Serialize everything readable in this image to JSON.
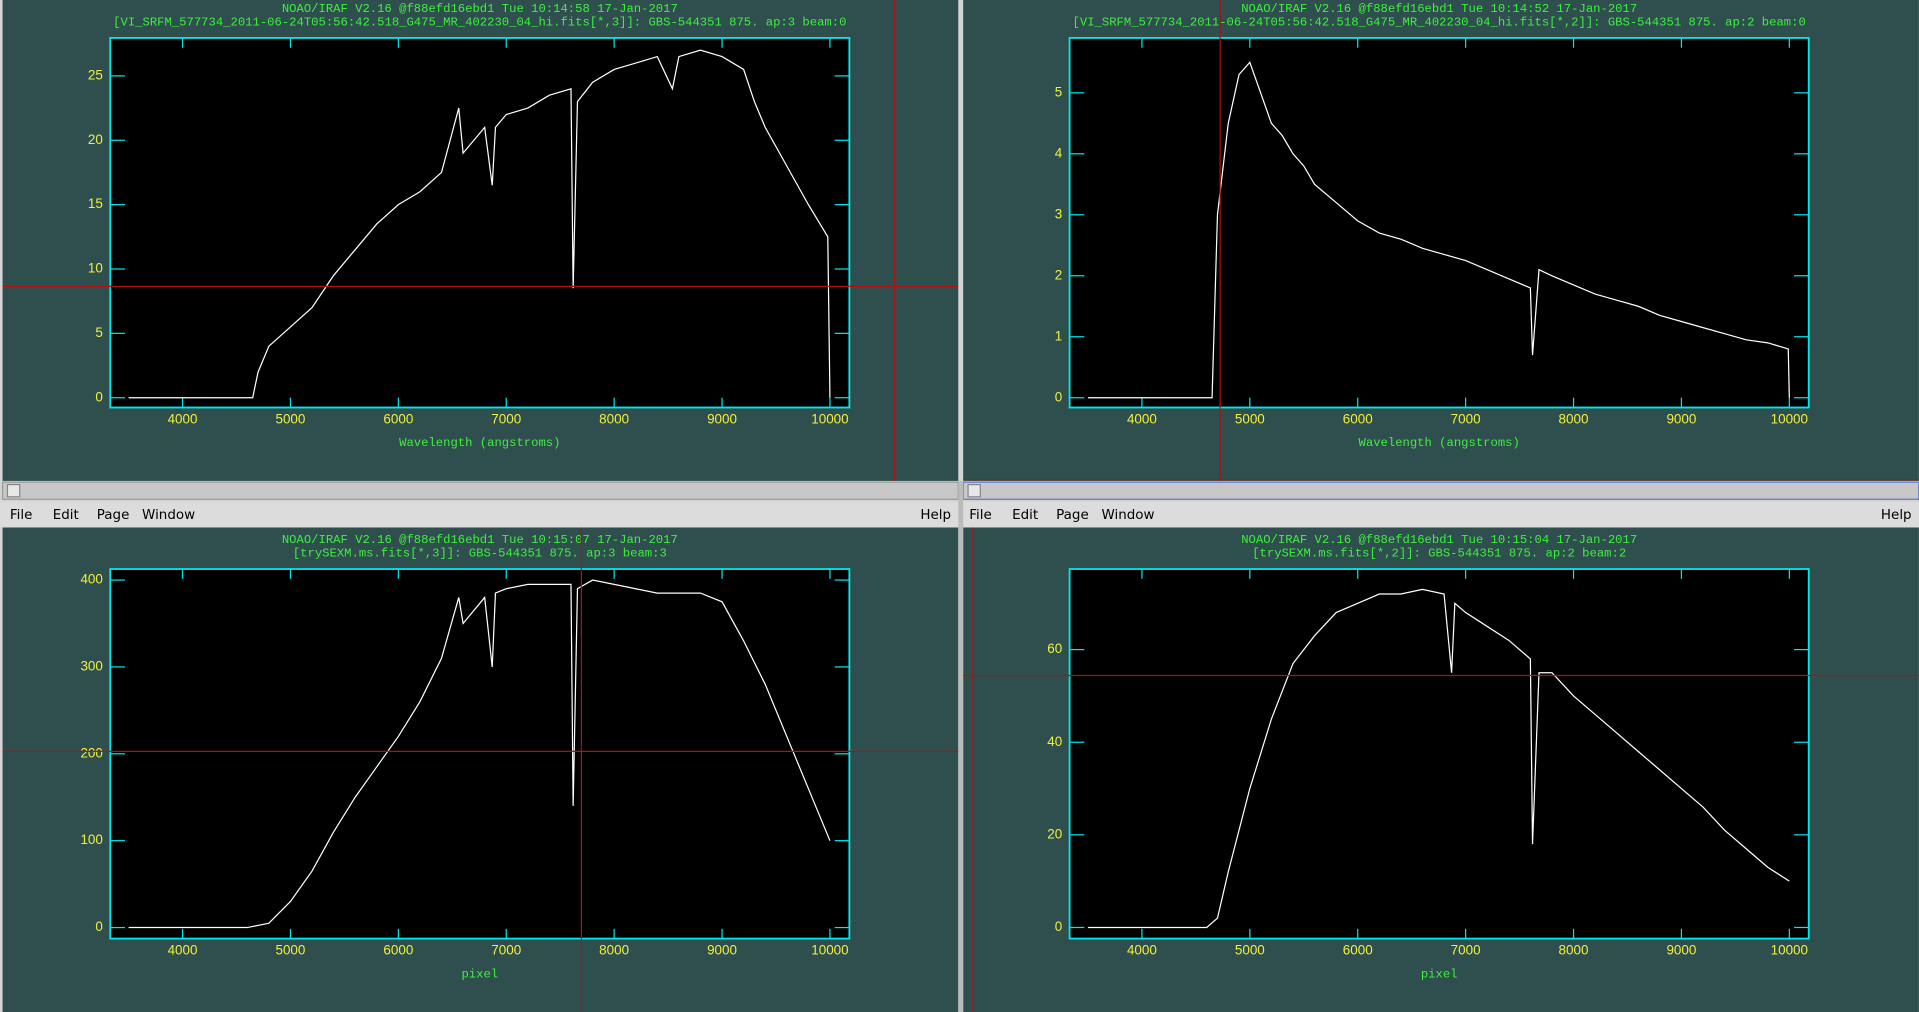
{
  "chart_data": [
    {
      "type": "line",
      "title": "NOAO/IRAF V2.16 @f88efd16ebd1 Tue 10:14:58 17-Jan-2017",
      "subtitle": "[VI_SRFM_577734_2011-06-24T05:56:42.518_G475_MR_402230_04_hi.fits[*,3]]: GBS-544351 875. ap:3 beam:0",
      "x_label": "Wavelength (angstroms)",
      "color": "#ffffff",
      "x": [
        3500,
        4650,
        4700,
        4800,
        5000,
        5200,
        5400,
        5600,
        5800,
        6000,
        6200,
        6400,
        6560,
        6600,
        6800,
        6870,
        6900,
        7000,
        7200,
        7400,
        7600,
        7620,
        7660,
        7800,
        8000,
        8200,
        8400,
        8540,
        8600,
        8800,
        9000,
        9200,
        9300,
        9400,
        9600,
        9800,
        9980,
        10000
      ],
      "values": [
        0,
        0,
        2,
        4,
        5.5,
        7,
        9.5,
        11.5,
        13.5,
        15,
        16,
        17.5,
        22.5,
        19,
        21,
        16.5,
        21,
        22,
        22.5,
        23.5,
        24,
        8.5,
        23,
        24.5,
        25.5,
        26,
        26.5,
        24,
        26.5,
        27,
        26.5,
        25.5,
        23,
        21,
        18,
        15,
        12.5,
        0
      ],
      "xlim": [
        3330,
        10180
      ],
      "ylim": [
        -0.76,
        27.95
      ],
      "xticks": [
        4000,
        5000,
        6000,
        7000,
        8000,
        9000,
        10000
      ],
      "yticks": [
        0,
        5,
        10,
        15,
        20,
        25
      ]
    },
    {
      "type": "line",
      "title": "NOAO/IRAF V2.16 @f88efd16ebd1 Tue 10:14:52 17-Jan-2017",
      "subtitle": "[VI_SRFM_577734_2011-06-24T05:56:42.518_G475_MR_402230_04_hi.fits[*,2]]: GBS-544351 875. ap:2 beam:0",
      "x_label": "Wavelength (angstroms)",
      "color": "#ffffff",
      "x": [
        3500,
        4650,
        4700,
        4800,
        4900,
        5000,
        5100,
        5200,
        5300,
        5400,
        5500,
        5600,
        5800,
        6000,
        6200,
        6400,
        6600,
        6800,
        7000,
        7200,
        7400,
        7600,
        7620,
        7680,
        7800,
        8000,
        8200,
        8400,
        8600,
        8800,
        9000,
        9200,
        9400,
        9600,
        9800,
        9990,
        10000
      ],
      "values": [
        0,
        0,
        3,
        4.5,
        5.3,
        5.5,
        5,
        4.5,
        4.3,
        4,
        3.8,
        3.5,
        3.2,
        2.9,
        2.7,
        2.6,
        2.45,
        2.35,
        2.25,
        2.1,
        1.95,
        1.8,
        0.7,
        2.1,
        2,
        1.85,
        1.7,
        1.6,
        1.5,
        1.35,
        1.25,
        1.15,
        1.05,
        0.95,
        0.9,
        0.8,
        0
      ],
      "xlim": [
        3330,
        10180
      ],
      "ylim": [
        -0.16,
        5.9
      ],
      "xticks": [
        4000,
        5000,
        6000,
        7000,
        8000,
        9000,
        10000
      ],
      "yticks": [
        0,
        1,
        2,
        3,
        4,
        5
      ]
    },
    {
      "type": "line",
      "title": "NOAO/IRAF V2.16 @f88efd16ebd1 Tue 10:15:07 17-Jan-2017",
      "subtitle": "[trySEXM.ms.fits[*,3]]: GBS-544351 875. ap:3 beam:3",
      "x_label": "pixel",
      "color": "#ffffff",
      "x": [
        3500,
        4600,
        4800,
        5000,
        5200,
        5400,
        5600,
        5800,
        6000,
        6200,
        6400,
        6560,
        6600,
        6800,
        6870,
        6900,
        7000,
        7200,
        7400,
        7600,
        7620,
        7660,
        7800,
        8000,
        8200,
        8400,
        8600,
        8800,
        9000,
        9200,
        9400,
        9600,
        9800,
        10000
      ],
      "values": [
        0,
        0,
        5,
        30,
        65,
        110,
        150,
        185,
        220,
        260,
        310,
        380,
        350,
        380,
        300,
        385,
        390,
        395,
        395,
        395,
        140,
        390,
        400,
        395,
        390,
        385,
        385,
        385,
        375,
        330,
        280,
        220,
        160,
        100
      ],
      "xlim": [
        3330,
        10180
      ],
      "ylim": [
        -12.7,
        412.7
      ],
      "xticks": [
        4000,
        5000,
        6000,
        7000,
        8000,
        9000,
        10000
      ],
      "yticks": [
        0,
        100,
        200,
        300,
        400
      ]
    },
    {
      "type": "line",
      "title": "NOAO/IRAF V2.16 @f88efd16ebd1 Tue 10:15:04 17-Jan-2017",
      "subtitle": "[trySEXM.ms.fits[*,2]]: GBS-544351 875. ap:2 beam:2",
      "x_label": "pixel",
      "color": "#ffffff",
      "x": [
        3500,
        4600,
        4700,
        4800,
        5000,
        5200,
        5400,
        5600,
        5800,
        6000,
        6200,
        6400,
        6600,
        6800,
        6870,
        6900,
        7000,
        7200,
        7400,
        7600,
        7620,
        7680,
        7800,
        8000,
        8200,
        8400,
        8600,
        8800,
        9000,
        9200,
        9400,
        9600,
        9800,
        10000
      ],
      "values": [
        0,
        0,
        2,
        12,
        30,
        45,
        57,
        63,
        68,
        70,
        72,
        72,
        73,
        72,
        55,
        70,
        68,
        65,
        62,
        58,
        18,
        55,
        55,
        50,
        46,
        42,
        38,
        34,
        30,
        26,
        21,
        17,
        13,
        10
      ],
      "xlim": [
        3330,
        10180
      ],
      "ylim": [
        -2.4,
        77.4
      ],
      "xticks": [
        4000,
        5000,
        6000,
        7000,
        8000,
        9000,
        10000
      ],
      "yticks": [
        0,
        20,
        40,
        60
      ]
    }
  ],
  "menus": [
    {
      "items": [
        "File",
        "Edit",
        "Page",
        "Window"
      ],
      "help": "Help"
    },
    {
      "items": [
        "File",
        "Edit",
        "Page",
        "Window"
      ],
      "help": "Help"
    }
  ]
}
